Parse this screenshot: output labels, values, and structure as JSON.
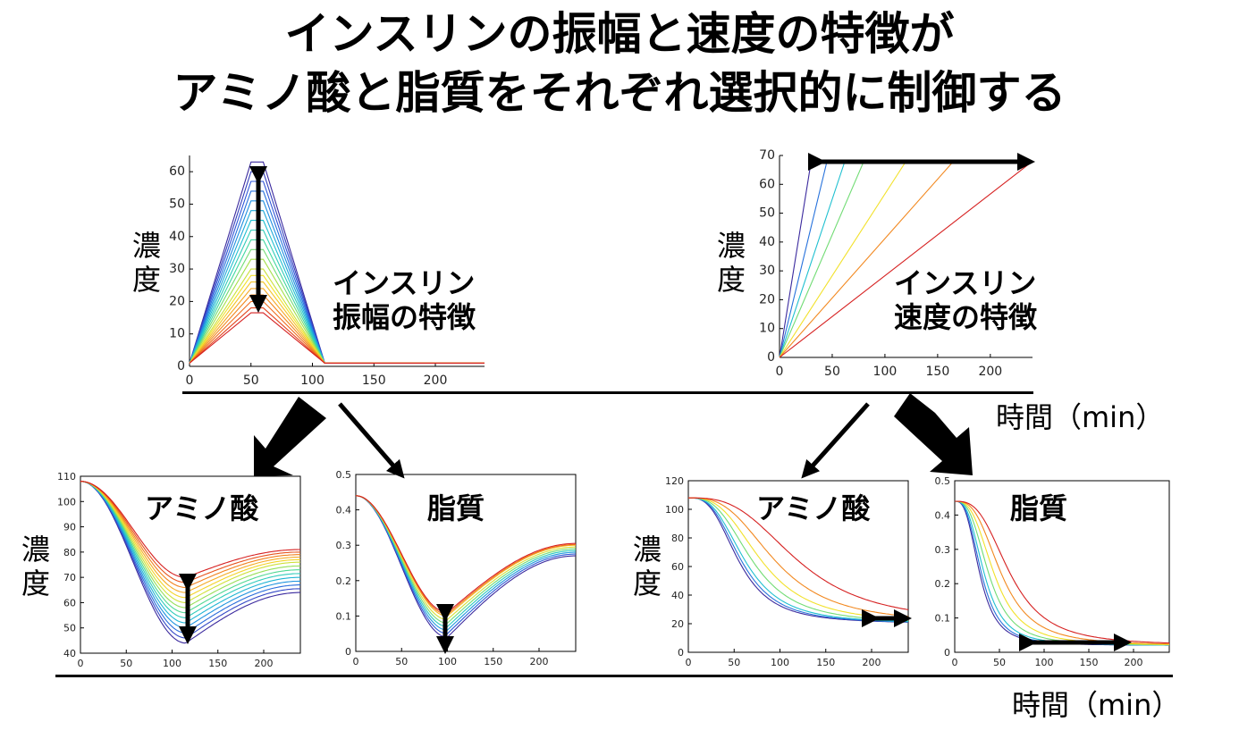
{
  "title": {
    "line1": "インスリンの振幅と速度の特徴が",
    "line2": "アミノ酸と脂質をそれぞれ選択的に制御する"
  },
  "labels": {
    "concentration": "濃度",
    "time_top": "時間（min）",
    "time_bottom": "時間（min）"
  },
  "chart_data": [
    {
      "id": "insulin-amplitude",
      "type": "line",
      "label_lines": [
        "インスリン",
        "振幅の特徴"
      ],
      "xlim": [
        0,
        240
      ],
      "ylim": [
        0,
        65
      ],
      "xticks": [
        0,
        50,
        100,
        150,
        200
      ],
      "yticks": [
        0,
        10,
        20,
        30,
        40,
        50,
        60
      ],
      "x_points": [
        0,
        50,
        60,
        110,
        240
      ],
      "series_peaks": [
        63,
        60,
        57,
        54,
        51,
        48,
        45,
        42,
        39,
        36,
        33,
        30,
        28,
        26,
        24,
        22,
        20,
        18,
        16.5
      ],
      "baseline": 1
    },
    {
      "id": "insulin-speed",
      "type": "line",
      "label_lines": [
        "インスリン",
        "速度の特徴"
      ],
      "xlim": [
        0,
        240
      ],
      "ylim": [
        0,
        70
      ],
      "xticks": [
        0,
        50,
        100,
        150,
        200
      ],
      "yticks": [
        0,
        10,
        20,
        30,
        40,
        50,
        60,
        70
      ],
      "max_value": 68,
      "series_reach_x": [
        30,
        45,
        62,
        80,
        120,
        165,
        240
      ]
    },
    {
      "id": "amino-acid-amplitude",
      "type": "line",
      "label_lines": [
        "アミノ酸"
      ],
      "xlim": [
        0,
        240
      ],
      "ylim": [
        40,
        110
      ],
      "xticks": [
        0,
        50,
        100,
        150,
        200
      ],
      "yticks": [
        40,
        50,
        60,
        70,
        80,
        90,
        100,
        110
      ],
      "start": 108,
      "min_x": 115,
      "series_min": [
        44,
        46,
        48,
        50,
        52,
        54,
        56,
        58,
        60,
        62,
        64,
        66,
        68,
        70
      ],
      "series_end": [
        64,
        65.5,
        67,
        68.5,
        70,
        71.5,
        73,
        74.5,
        76,
        77,
        78,
        79,
        80,
        81
      ]
    },
    {
      "id": "lipid-amplitude",
      "type": "line",
      "label_lines": [
        "脂質"
      ],
      "xlim": [
        0,
        240
      ],
      "ylim": [
        0,
        0.5
      ],
      "xticks": [
        0,
        50,
        100,
        150,
        200
      ],
      "yticks": [
        0,
        0.1,
        0.2,
        0.3,
        0.4,
        0.5
      ],
      "start": 0.44,
      "min_x": 100,
      "series_min": [
        0.04,
        0.05,
        0.06,
        0.07,
        0.08,
        0.09,
        0.1,
        0.105,
        0.11
      ],
      "series_end": [
        0.27,
        0.275,
        0.28,
        0.285,
        0.29,
        0.295,
        0.3,
        0.302,
        0.305
      ]
    },
    {
      "id": "amino-acid-speed",
      "type": "line",
      "label_lines": [
        "アミノ酸"
      ],
      "xlim": [
        0,
        240
      ],
      "ylim": [
        0,
        120
      ],
      "xticks": [
        0,
        50,
        100,
        150,
        200
      ],
      "yticks": [
        0,
        20,
        40,
        60,
        80,
        100,
        120
      ],
      "start": 108,
      "end": 20,
      "series_half_x": [
        55,
        58,
        62,
        70,
        80,
        95,
        120
      ]
    },
    {
      "id": "lipid-speed",
      "type": "line",
      "label_lines": [
        "脂質"
      ],
      "xlim": [
        0,
        240
      ],
      "ylim": [
        0,
        0.5
      ],
      "xticks": [
        0,
        50,
        100,
        150,
        200
      ],
      "yticks": [
        0,
        0.1,
        0.2,
        0.3,
        0.4,
        0.5
      ],
      "start": 0.44,
      "end": 0.02,
      "series_half_x": [
        28,
        30,
        33,
        38,
        44,
        52,
        62
      ]
    }
  ],
  "colors": {
    "rainbow": [
      "#3b2a9e",
      "#2f55d8",
      "#1e8fe0",
      "#20c0d0",
      "#3fd7a0",
      "#a5e04a",
      "#f2e12a",
      "#f5a623",
      "#ef6a1a",
      "#d62020"
    ],
    "arrow": "#000000"
  }
}
